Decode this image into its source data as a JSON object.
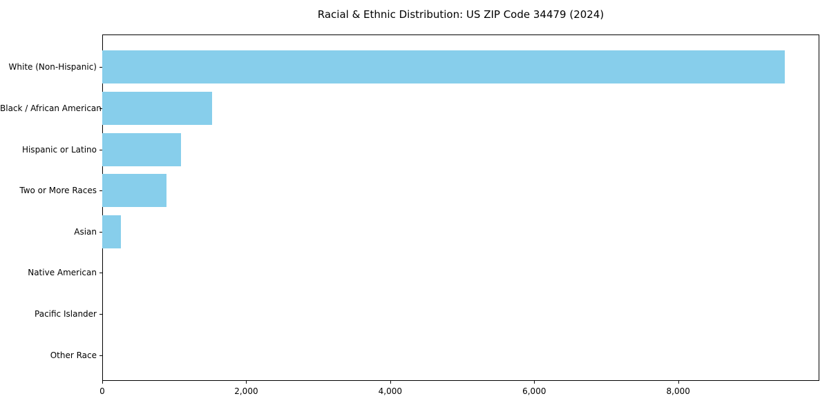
{
  "chart_data": {
    "type": "bar",
    "orientation": "horizontal",
    "title": "Racial & Ethnic Distribution: US ZIP Code 34479 (2024)",
    "categories": [
      "White (Non-Hispanic)",
      "Black / African American",
      "Hispanic or Latino",
      "Two or More Races",
      "Asian",
      "Native American",
      "Pacific Islander",
      "Other Race"
    ],
    "values": [
      9480,
      1530,
      1090,
      890,
      260,
      0,
      0,
      0
    ],
    "xlabel": "",
    "ylabel": "",
    "xlim": [
      0,
      9960
    ],
    "xticks": [
      0,
      2000,
      4000,
      6000,
      8000
    ],
    "xtick_labels": [
      "0",
      "2,000",
      "4,000",
      "6,000",
      "8,000"
    ],
    "grid": false,
    "legend": null,
    "bar_color": "#87CEEB",
    "background_color": "#ffffff",
    "text_color": "#000000",
    "spine_color": "#000000"
  }
}
